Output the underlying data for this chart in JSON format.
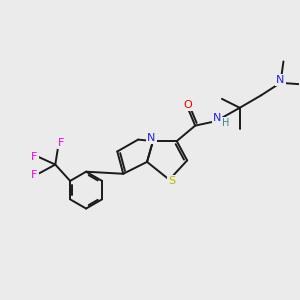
{
  "bg_color": "#ebebeb",
  "bond_color": "#1a1a1a",
  "atom_colors": {
    "N": "#2222ee",
    "S": "#bbbb00",
    "O": "#ee0000",
    "F": "#ee00ee",
    "H": "#338888",
    "C": "#1a1a1a"
  },
  "figsize": [
    3.0,
    3.0
  ],
  "dpi": 100
}
